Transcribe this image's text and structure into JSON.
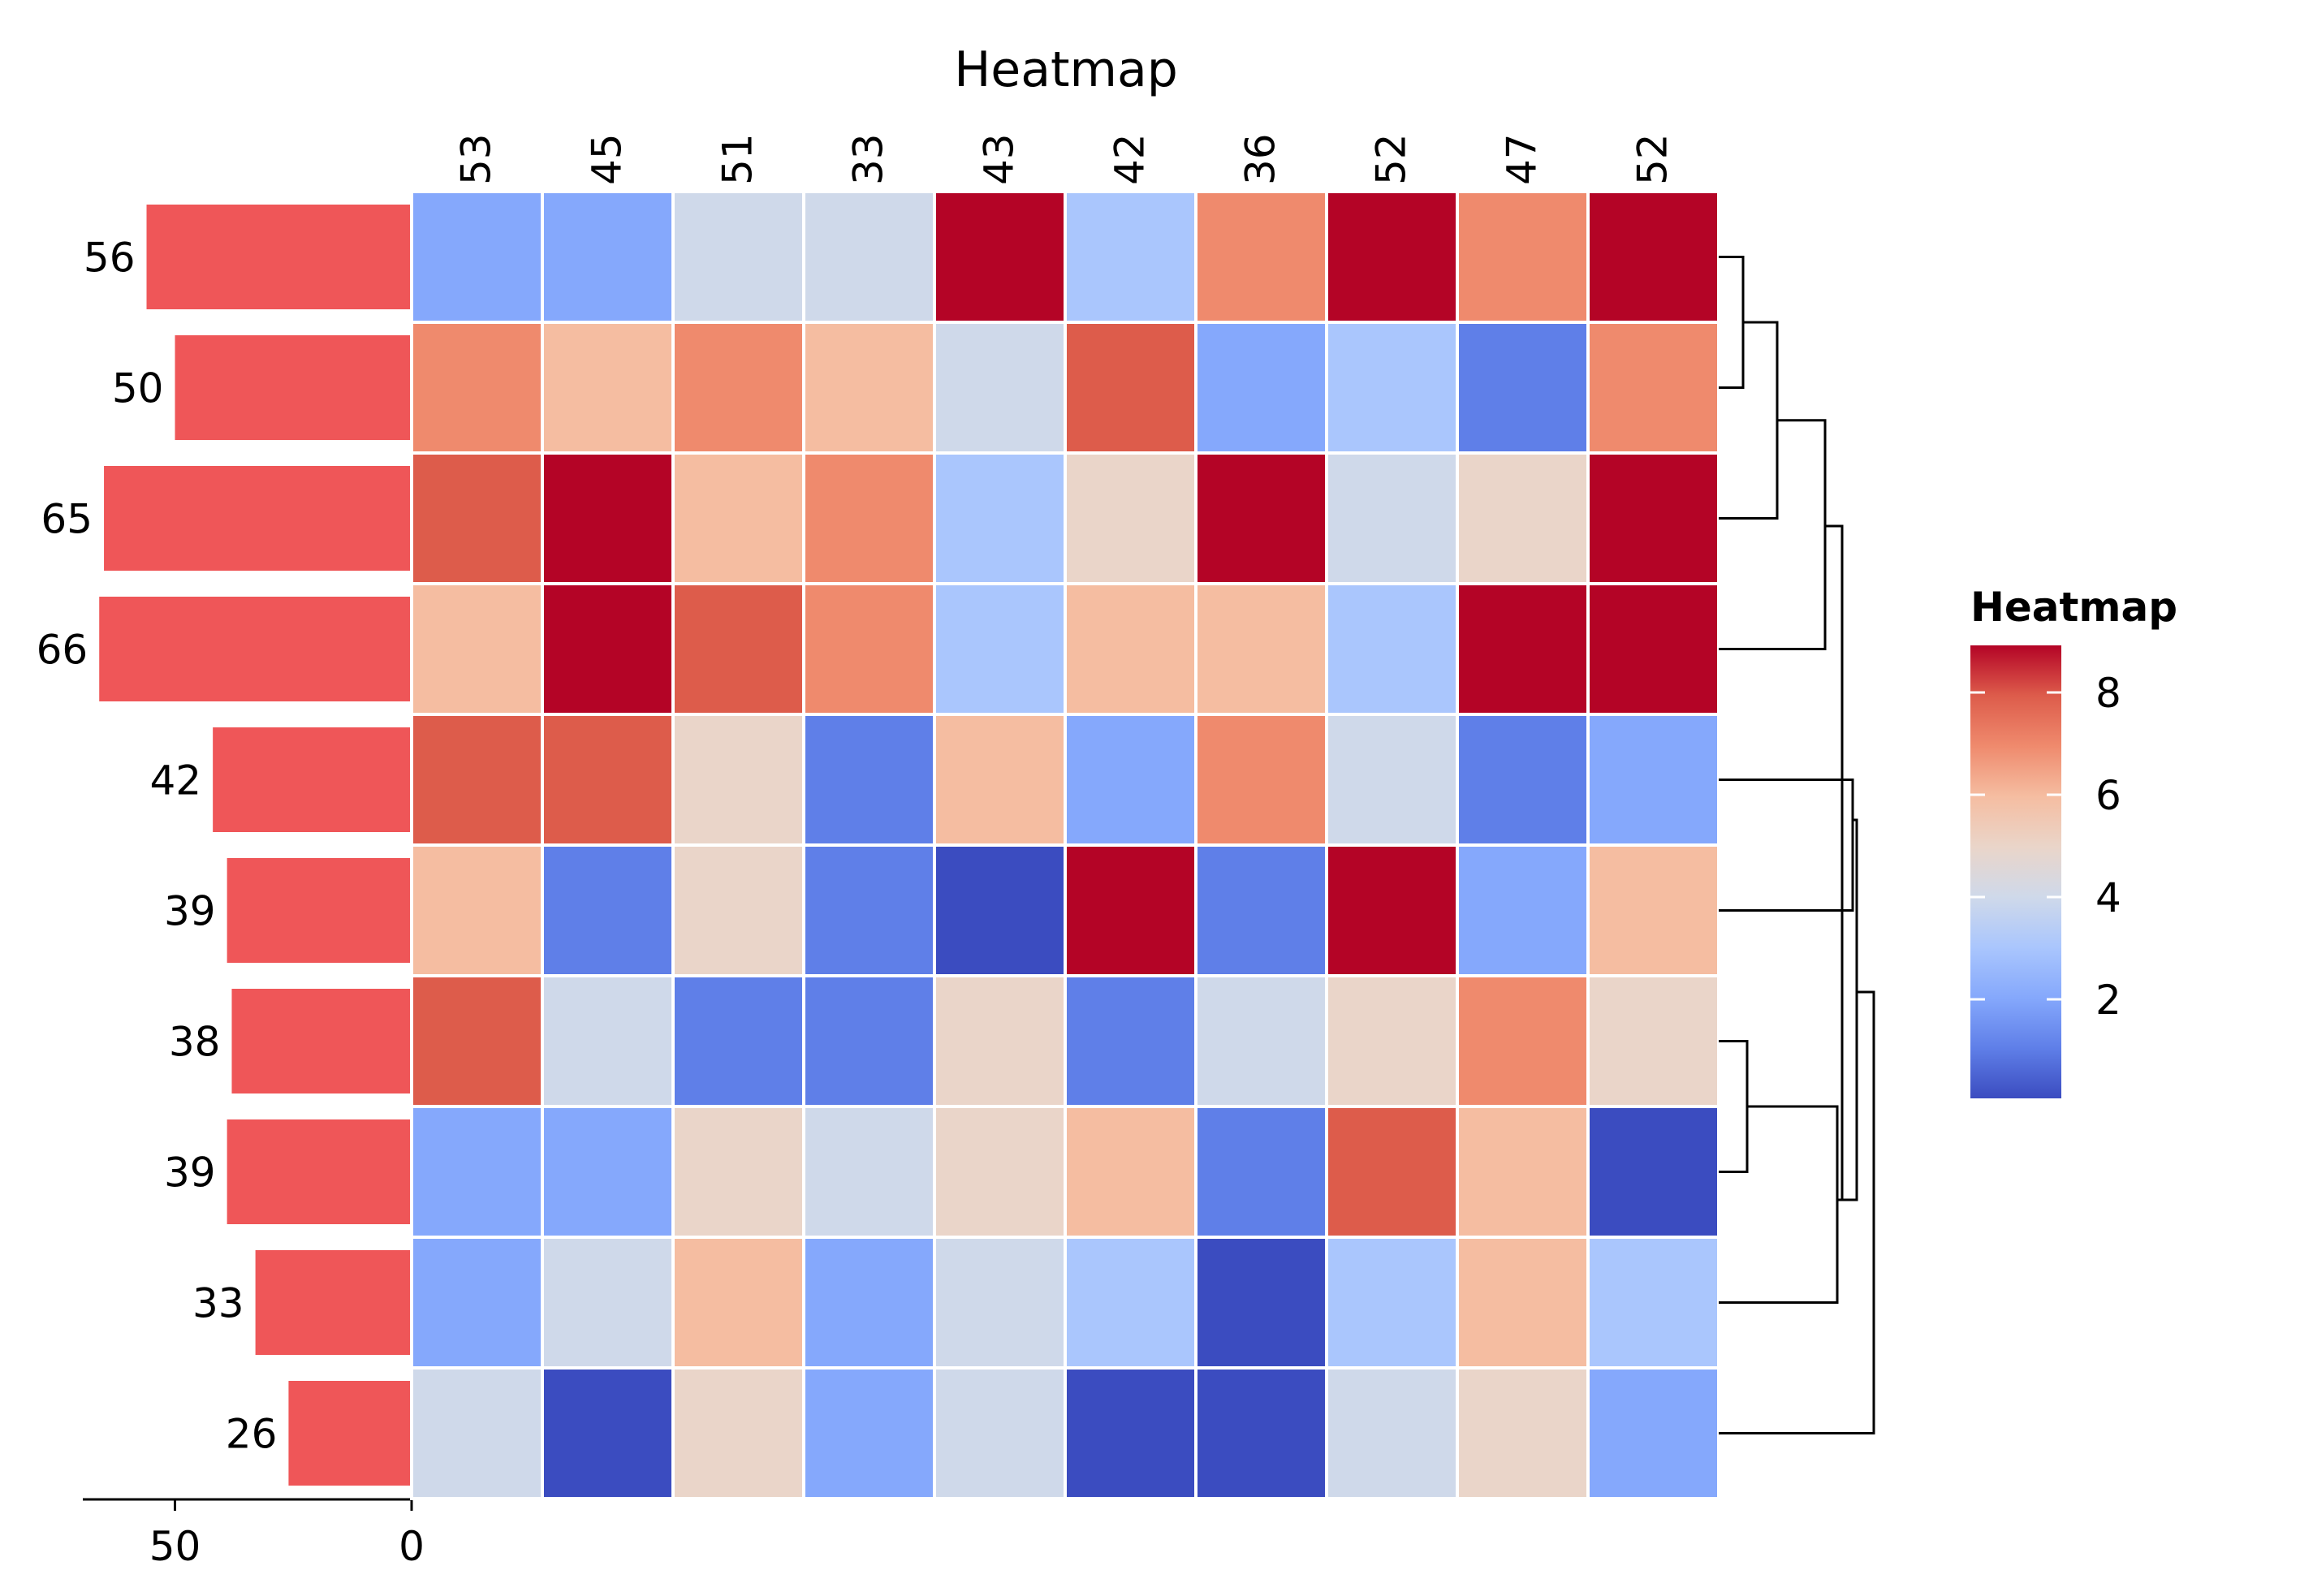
{
  "chart_data": {
    "type": "heatmap",
    "title": "Heatmap",
    "column_labels": [
      "53",
      "45",
      "51",
      "33",
      "43",
      "42",
      "36",
      "52",
      "47",
      "52"
    ],
    "row_labels": [
      "56",
      "50",
      "65",
      "66",
      "42",
      "39",
      "38",
      "39",
      "33",
      "26"
    ],
    "row_bar_values": [
      56,
      50,
      65,
      66,
      42,
      39,
      38,
      39,
      33,
      26
    ],
    "row_bar_ticks": [
      50,
      0
    ],
    "row_bar_color": "#ef5658",
    "values": [
      [
        2,
        2,
        4,
        4,
        9,
        3,
        7,
        9,
        7,
        9
      ],
      [
        7,
        6,
        7,
        6,
        4,
        8,
        2,
        3,
        1,
        7
      ],
      [
        8,
        9,
        6,
        7,
        3,
        5,
        9,
        4,
        5,
        9
      ],
      [
        6,
        9,
        8,
        7,
        3,
        6,
        6,
        3,
        9,
        9
      ],
      [
        8,
        8,
        5,
        1,
        6,
        2,
        7,
        4,
        1,
        2
      ],
      [
        6,
        1,
        5,
        1,
        0,
        9,
        1,
        9,
        2,
        6
      ],
      [
        8,
        4,
        1,
        1,
        5,
        1,
        4,
        5,
        7,
        5
      ],
      [
        2,
        2,
        5,
        4,
        5,
        6,
        1,
        8,
        6,
        0
      ],
      [
        2,
        4,
        6,
        2,
        4,
        3,
        0,
        3,
        6,
        3
      ],
      [
        4,
        0,
        5,
        2,
        4,
        0,
        0,
        4,
        5,
        2
      ]
    ],
    "colorbar": {
      "title": "Heatmap",
      "min": 0,
      "max": 9,
      "ticks": [
        8,
        6,
        4,
        2
      ],
      "levels": [
        {
          "value": 0,
          "color": "#3b4cc0"
        },
        {
          "value": 1,
          "color": "#5f7fe8"
        },
        {
          "value": 2,
          "color": "#85a8fc"
        },
        {
          "value": 3,
          "color": "#aac6fd"
        },
        {
          "value": 4,
          "color": "#cfd9ea"
        },
        {
          "value": 5,
          "color": "#ead5c9"
        },
        {
          "value": 6,
          "color": "#f5bda1"
        },
        {
          "value": 7,
          "color": "#ef8a6d"
        },
        {
          "value": 8,
          "color": "#dd5c4b"
        },
        {
          "value": 9,
          "color": "#b40426"
        }
      ]
    },
    "dendrogram": "rows",
    "grid": false
  }
}
